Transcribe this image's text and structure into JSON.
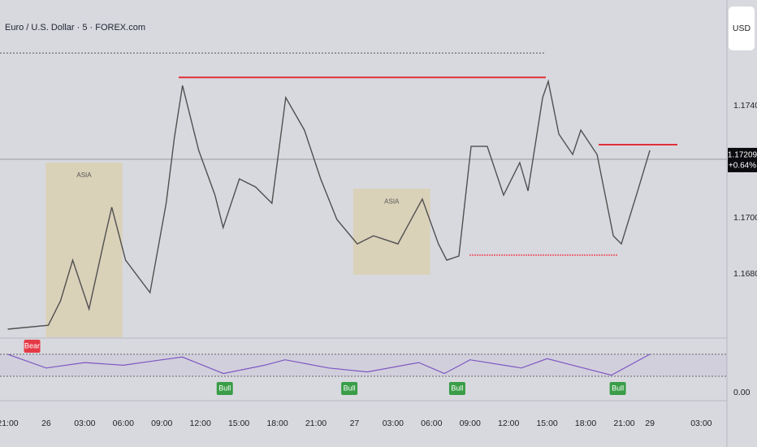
{
  "chart_data": [
    {
      "type": "line",
      "title": "Euro / U.S. Dollar · 5 · FOREX.com",
      "currency": "USD",
      "color": "#505050",
      "x": [
        0,
        3.16,
        4.11,
        5.06,
        6.33,
        7.59,
        8.1,
        9.18,
        11.08,
        12.34,
        12.97,
        13.61,
        14.87,
        16.14,
        16.77,
        18.04,
        19.3,
        20.57,
        21.65,
        23.1,
        24.37,
        25.63,
        27.22,
        28.48,
        30.38,
        32.28,
        33.54,
        34.18,
        35.13,
        36.08,
        37.34,
        38.61,
        39.87,
        40.51,
        41.65,
        42.09,
        42.91,
        43.99,
        44.62,
        45.89,
        47.15,
        47.78,
        49.05,
        50
      ],
      "values": [
        1.16603,
        1.16617,
        1.16704,
        1.16849,
        1.16675,
        1.16936,
        1.17038,
        1.16849,
        1.16733,
        1.17052,
        1.17284,
        1.17472,
        1.17241,
        1.17081,
        1.16965,
        1.17139,
        1.1711,
        1.17052,
        1.17429,
        1.17313,
        1.17139,
        1.16994,
        1.16907,
        1.16936,
        1.16907,
        1.17067,
        1.16907,
        1.16849,
        1.16864,
        1.17255,
        1.17255,
        1.17081,
        1.17197,
        1.17096,
        1.17429,
        1.17487,
        1.17299,
        1.17226,
        1.17313,
        1.17226,
        1.16936,
        1.16907,
        1.17096,
        1.17241
      ],
      "xlim": [
        -0.6,
        56
      ],
      "ylim": [
        1.16574,
        1.17777
      ],
      "xticks": [
        {
          "value": 0,
          "label": "21:00"
        },
        {
          "value": 3,
          "label": "26"
        },
        {
          "value": 6,
          "label": "03:00"
        },
        {
          "value": 9,
          "label": "06:00"
        },
        {
          "value": 12,
          "label": "09:00"
        },
        {
          "value": 15,
          "label": "12:00"
        },
        {
          "value": 18,
          "label": "15:00"
        },
        {
          "value": 21,
          "label": "18:00"
        },
        {
          "value": 24,
          "label": "21:00"
        },
        {
          "value": 27,
          "label": "27"
        },
        {
          "value": 30,
          "label": "03:00"
        },
        {
          "value": 33,
          "label": "06:00"
        },
        {
          "value": 36,
          "label": "09:00"
        },
        {
          "value": 39,
          "label": "12:00"
        },
        {
          "value": 42,
          "label": "15:00"
        },
        {
          "value": 45,
          "label": "18:00"
        },
        {
          "value": 48,
          "label": "21:00"
        },
        {
          "value": 50,
          "label": "29"
        },
        {
          "value": 54,
          "label": "03:00"
        }
      ],
      "yticks": [
        {
          "value": 1.168,
          "label": "1.16800"
        },
        {
          "value": 1.17,
          "label": "1.17000"
        },
        {
          "value": 1.174,
          "label": "1.17400"
        }
      ],
      "last_price": 1.17209,
      "change_label": "+0.64%",
      "levels": [
        1.17588,
        1.17501,
        1.17261,
        1.16867
      ],
      "sessions": [
        {
          "label": "ASIA",
          "start": 2.97,
          "end": 8.92,
          "high": 1.17197,
          "low": 1.16574
        },
        {
          "label": "ASIA",
          "start": 26.9,
          "end": 32.9,
          "high": 1.17104,
          "low": 1.16797
        }
      ]
    },
    {
      "type": "line",
      "color": "#7e57c2",
      "x": [
        0,
        3,
        6,
        9,
        12,
        13.6,
        16.8,
        20,
        21.6,
        25,
        28,
        32,
        34,
        36,
        40,
        42,
        44,
        47,
        50
      ],
      "values": [
        70,
        45,
        55,
        50,
        60,
        65,
        35,
        50,
        60,
        45,
        38,
        55,
        35,
        60,
        45,
        62,
        50,
        32,
        70
      ],
      "xlim": [
        -0.6,
        56
      ],
      "ylim": [
        -10,
        98
      ],
      "yticks": [
        {
          "value": 0,
          "label": "0.00"
        }
      ],
      "levels": [
        70,
        30
      ],
      "signals": [
        {
          "label": "Bear",
          "x": 1.9
        },
        {
          "label": "Bull",
          "x": 16.9
        },
        {
          "label": "Bull",
          "x": 26.6
        },
        {
          "label": "Bull",
          "x": 35
        },
        {
          "label": "Bull",
          "x": 47.5
        }
      ]
    }
  ]
}
